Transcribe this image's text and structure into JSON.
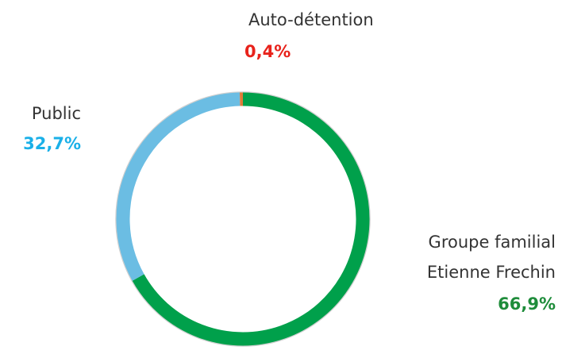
{
  "chart_data": {
    "type": "donut",
    "categories": [
      "Groupe familial\nEtienne Frechin",
      "Public",
      "Auto-détention"
    ],
    "values": [
      66.9,
      32.7,
      0.4
    ],
    "value_labels": [
      "66,9%",
      "32,7%",
      "0,4%"
    ],
    "colors": [
      "#00a04b",
      "#6bbde3",
      "#e07b39"
    ],
    "label_colors": [
      "#1e8c3a",
      "#1ab0e8",
      "#e8221b"
    ]
  }
}
